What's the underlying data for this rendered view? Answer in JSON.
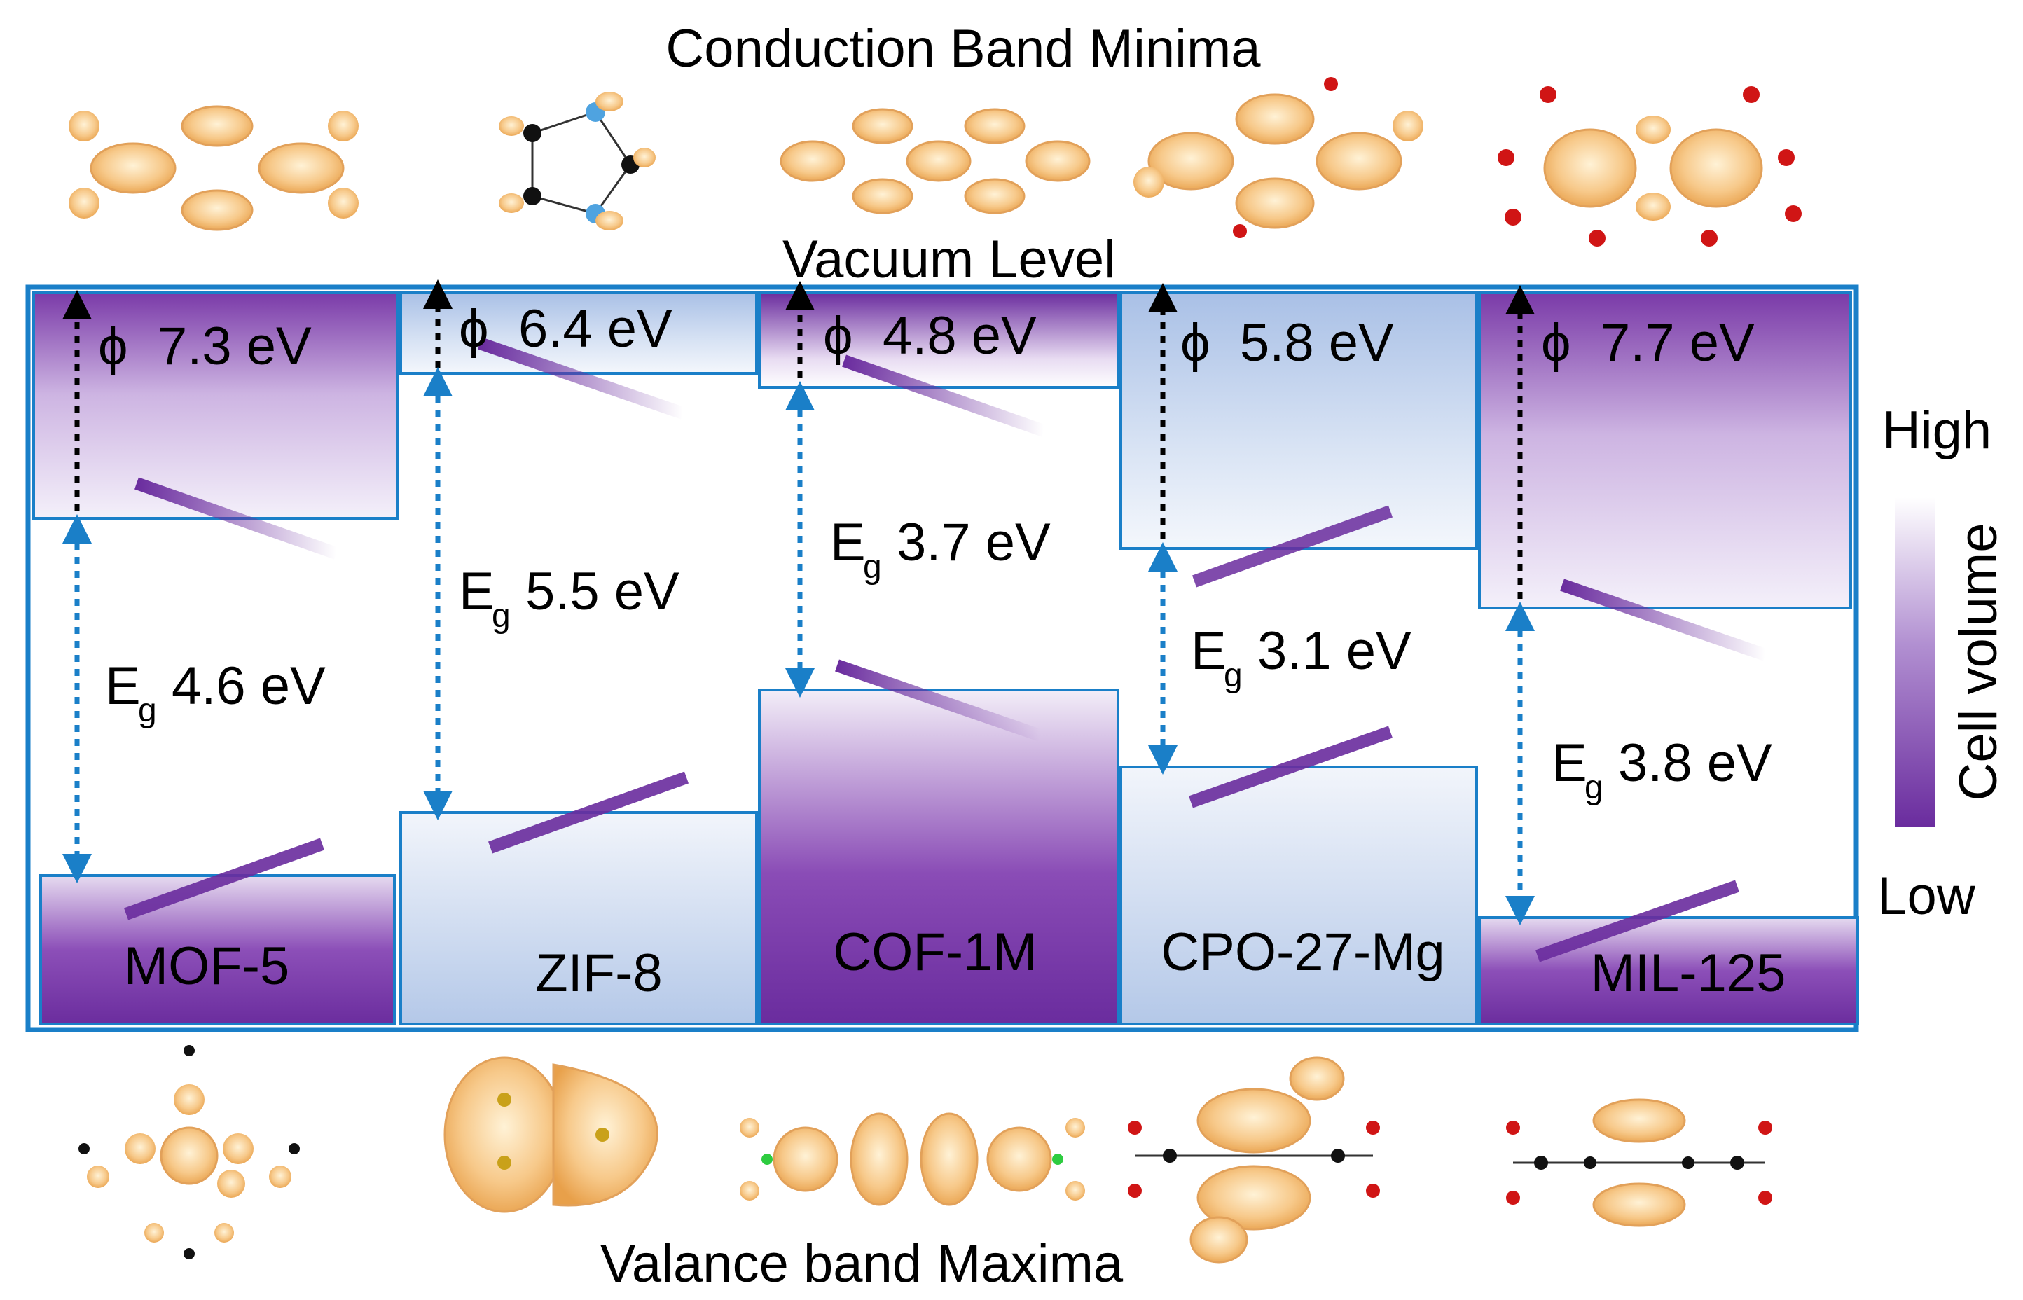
{
  "title_top": "Conduction Band Minima",
  "title_bottom": "Valance band Maxima",
  "vacuum_label": "Vacuum Level",
  "phi_symbol": "ϕ",
  "eg_main": "E",
  "eg_sub": "g",
  "colors": {
    "frame": "#1a7fc8",
    "purple": "#6a2c9e",
    "light_blue": "#b7cbe9",
    "arrow_blue": "#1a7fc8",
    "arrow_black": "#000000",
    "orbital": "#f2b35a"
  },
  "materials": [
    {
      "name": "MOF-5",
      "phi": "7.3 eV",
      "eg": "4.6 eV",
      "cb_color": "purple",
      "vb_color": "purple"
    },
    {
      "name": "ZIF-8",
      "phi": "6.4 eV",
      "eg": "5.5 eV",
      "cb_color": "blue",
      "vb_color": "blue"
    },
    {
      "name": "COF-1M",
      "phi": "4.8 eV",
      "eg": "3.7 eV",
      "cb_color": "purple",
      "vb_color": "purple"
    },
    {
      "name": "CPO-27-Mg",
      "phi": "5.8 eV",
      "eg": "3.1 eV",
      "cb_color": "blue",
      "vb_color": "blue"
    },
    {
      "name": "MIL-125",
      "phi": "7.7 eV",
      "eg": "3.8 eV",
      "cb_color": "purple",
      "vb_color": "purple"
    }
  ],
  "colorbar": {
    "high": "High",
    "low": "Low",
    "label": "Cell volume"
  }
}
